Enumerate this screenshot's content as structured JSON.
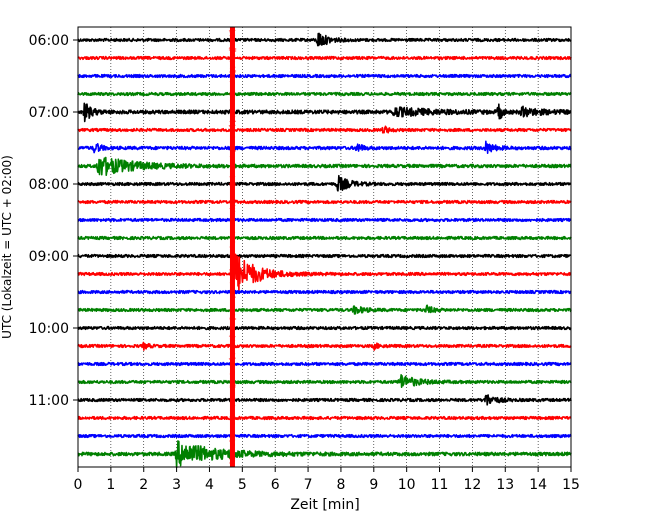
{
  "chart_data": {
    "type": "line",
    "title": "",
    "xlabel": "Zeit  [min]",
    "ylabel": "UTC (Lokalzeit = UTC + 02:00)",
    "xlim": [
      0,
      15
    ],
    "x_ticks": [
      0,
      1,
      2,
      3,
      4,
      5,
      6,
      7,
      8,
      9,
      10,
      11,
      12,
      13,
      14,
      15
    ],
    "grid": "vertical dotted",
    "y_ticks": [
      {
        "label": "06:00",
        "row": 0
      },
      {
        "label": "07:00",
        "row": 4
      },
      {
        "label": "08:00",
        "row": 8
      },
      {
        "label": "09:00",
        "row": 12
      },
      {
        "label": "10:00",
        "row": 16
      },
      {
        "label": "11:00",
        "row": 20
      }
    ],
    "row_colors": [
      "#000000",
      "#ff0000",
      "#0000ff",
      "#008000"
    ],
    "row_count": 24,
    "row_span_minutes": 15,
    "event": {
      "time_min": 4.7,
      "color": "#ff0000"
    },
    "rows": [
      {
        "noise": 1.0,
        "bursts": [
          {
            "t": 7.3,
            "amp": 8,
            "dur": 0.6
          }
        ]
      },
      {
        "noise": 1.0,
        "bursts": []
      },
      {
        "noise": 1.0,
        "bursts": []
      },
      {
        "noise": 1.0,
        "bursts": []
      },
      {
        "noise": 1.3,
        "bursts": [
          {
            "t": 0.2,
            "amp": 10,
            "dur": 0.4
          },
          {
            "t": 9.6,
            "amp": 4,
            "dur": 2.5
          },
          {
            "t": 12.8,
            "amp": 9,
            "dur": 0.2
          },
          {
            "t": 13.5,
            "amp": 4,
            "dur": 1.2
          }
        ]
      },
      {
        "noise": 1.0,
        "bursts": [
          {
            "t": 9.3,
            "amp": 4,
            "dur": 0.3
          }
        ]
      },
      {
        "noise": 1.1,
        "bursts": [
          {
            "t": 0.5,
            "amp": 5,
            "dur": 0.4
          },
          {
            "t": 8.5,
            "amp": 5,
            "dur": 0.3
          },
          {
            "t": 12.4,
            "amp": 6,
            "dur": 0.5
          }
        ]
      },
      {
        "noise": 1.1,
        "bursts": [
          {
            "t": 0.6,
            "amp": 10,
            "dur": 2.2
          }
        ]
      },
      {
        "noise": 1.0,
        "bursts": [
          {
            "t": 7.9,
            "amp": 8,
            "dur": 0.7
          }
        ]
      },
      {
        "noise": 1.0,
        "bursts": []
      },
      {
        "noise": 1.0,
        "bursts": []
      },
      {
        "noise": 1.0,
        "bursts": []
      },
      {
        "noise": 1.0,
        "bursts": []
      },
      {
        "noise": 1.0,
        "bursts": [
          {
            "t": 4.75,
            "amp": 22,
            "dur": 1.3
          }
        ]
      },
      {
        "noise": 1.0,
        "bursts": []
      },
      {
        "noise": 1.0,
        "bursts": [
          {
            "t": 8.4,
            "amp": 4,
            "dur": 0.6
          },
          {
            "t": 10.6,
            "amp": 4,
            "dur": 0.4
          }
        ]
      },
      {
        "noise": 1.0,
        "bursts": []
      },
      {
        "noise": 1.0,
        "bursts": [
          {
            "t": 2.0,
            "amp": 3,
            "dur": 0.3
          },
          {
            "t": 9.0,
            "amp": 3,
            "dur": 0.3
          }
        ]
      },
      {
        "noise": 1.0,
        "bursts": []
      },
      {
        "noise": 1.0,
        "bursts": [
          {
            "t": 9.8,
            "amp": 7,
            "dur": 1.0
          }
        ]
      },
      {
        "noise": 1.0,
        "bursts": [
          {
            "t": 12.4,
            "amp": 6,
            "dur": 0.6
          }
        ]
      },
      {
        "noise": 1.0,
        "bursts": []
      },
      {
        "noise": 1.0,
        "bursts": []
      },
      {
        "noise": 1.2,
        "bursts": [
          {
            "t": 3.0,
            "amp": 12,
            "dur": 2.5
          }
        ]
      }
    ]
  }
}
